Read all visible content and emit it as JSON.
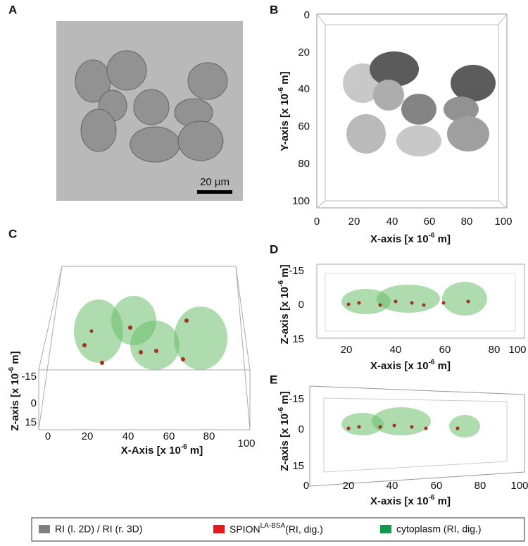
{
  "panels": {
    "A": {
      "label": "A",
      "scale_bar": "20 µm"
    },
    "B": {
      "label": "B",
      "x_title": [
        "X-axis [x 10",
        "-6",
        " m]"
      ],
      "x_ticks": [
        "0",
        "20",
        "40",
        "60",
        "80",
        "100"
      ],
      "y_title": [
        "Y-axis [x 10",
        "-6",
        " m]"
      ],
      "y_ticks": [
        "0",
        "20",
        "40",
        "60",
        "80",
        "100"
      ]
    },
    "C": {
      "label": "C",
      "x_title": [
        "X-Axis [x 10",
        "-6",
        " m]"
      ],
      "x_ticks": [
        "0",
        "20",
        "40",
        "60",
        "80",
        "100"
      ],
      "y_title": [
        "Z-axis [x 10",
        "-6",
        " m]"
      ],
      "y_ticks": [
        "-15",
        "0",
        "15"
      ]
    },
    "D": {
      "label": "D",
      "x_title": [
        "X-axis [x 10",
        "-6",
        " m]"
      ],
      "x_ticks": [
        "20",
        "40",
        "60",
        "80",
        "100"
      ],
      "y_title": [
        "Z-axis [x 10",
        "-6",
        " m]"
      ],
      "y_ticks": [
        "-15",
        "0",
        "15"
      ]
    },
    "E": {
      "label": "E",
      "x_title": [
        "X-axis [x 10",
        "-6",
        " m]"
      ],
      "x_ticks": [
        "0",
        "20",
        "40",
        "60",
        "80",
        "100"
      ],
      "y_title": [
        "Z-axis [x 10",
        "-6",
        " m]"
      ],
      "y_ticks": [
        "-15",
        "0",
        "15"
      ]
    }
  },
  "legend": [
    "RI (l. 2D) / RI (r. 3D)",
    {
      "name": "SPION",
      "sup": "LA-BSA",
      "rest": "(RI, dig.)"
    },
    "cytoplasm (RI, dig.)"
  ]
}
